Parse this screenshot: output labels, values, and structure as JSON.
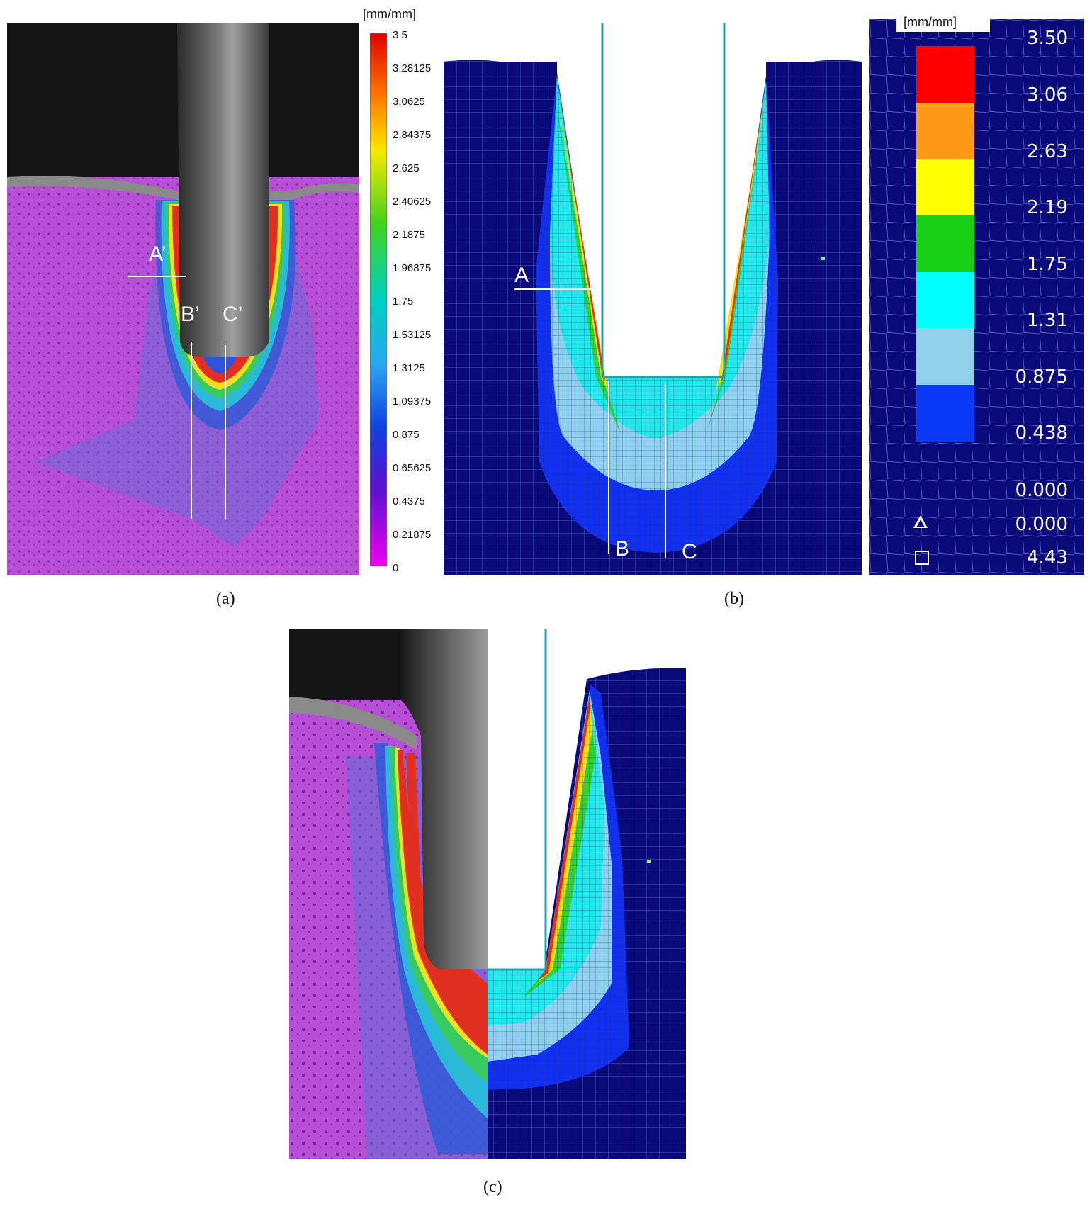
{
  "panel_a": {
    "caption": "(a)",
    "unit": "[mm/mm]",
    "markers": [
      "A’",
      "B’",
      "C’"
    ],
    "colorbar_ticks": [
      "3.5",
      "3.28125",
      "3.0625",
      "2.84375",
      "2.625",
      "2.40625",
      "2.1875",
      "1.96875",
      "1.75",
      "1.53125",
      "1.3125",
      "1.09375",
      "0.875",
      "0.65625",
      "0.4375",
      "0.21875",
      "0"
    ]
  },
  "panel_b": {
    "caption": "(b)",
    "unit": "[mm/mm]",
    "markers": [
      "A",
      "B",
      "C"
    ],
    "legend_values": [
      "3.50",
      "3.06",
      "2.63",
      "2.19",
      "1.75",
      "1.31",
      "0.875",
      "0.438",
      "0.000"
    ],
    "min_label": "0.000",
    "max_label": "4.43"
  },
  "panel_c": {
    "caption": "(c)"
  },
  "colors": {
    "fe_background": "#0a0a7a",
    "mesh_line": "#4a56c8",
    "tool": "#1aa6b0",
    "dic_background": "#b64fd6"
  }
}
